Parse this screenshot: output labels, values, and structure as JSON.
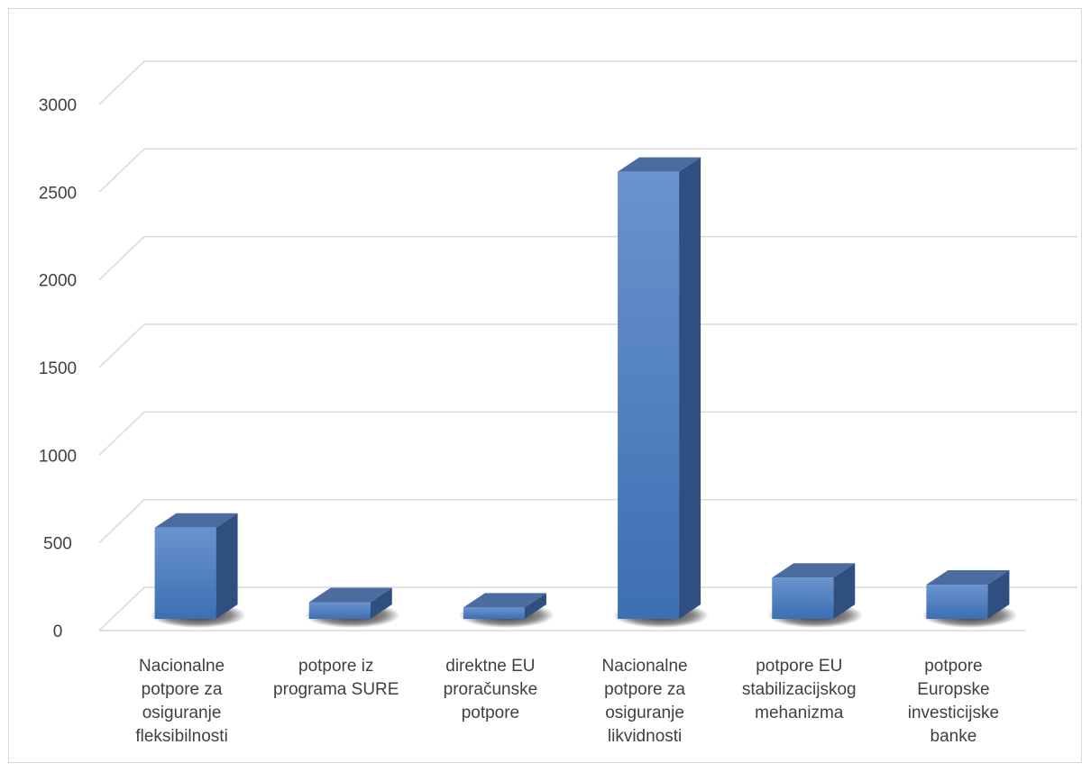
{
  "chart_data": {
    "type": "bar",
    "style": "3d-column",
    "title": "",
    "xlabel": "",
    "ylabel": "",
    "ylim": [
      0,
      3000
    ],
    "yticks": [
      "0",
      "500",
      "1000",
      "1500",
      "2000",
      "2500",
      "3000"
    ],
    "grid": true,
    "legend": "none",
    "categories": [
      [
        "Nacionalne",
        "potpore za",
        "osiguranje",
        "fleksibilnosti"
      ],
      [
        "potpore iz",
        "programa SURE"
      ],
      [
        "direktne EU",
        "proračunske",
        "potpore"
      ],
      [
        "Nacionalne",
        "potpore za",
        "osiguranje",
        "likvidnosti"
      ],
      [
        "potpore EU",
        "stabilizacijskog",
        "mehanizma"
      ],
      [
        "potpore",
        "Europske",
        "investicijske",
        "banke"
      ]
    ],
    "values": [
      520,
      95,
      65,
      2550,
      235,
      195
    ],
    "colors": {
      "bar_light": "#6a93cf",
      "bar_dark": "#3d6fb3",
      "bar_top": "#4a6c9e",
      "bar_side": "#2e4f80",
      "grid": "#d9d9d9",
      "text": "#404040"
    }
  }
}
